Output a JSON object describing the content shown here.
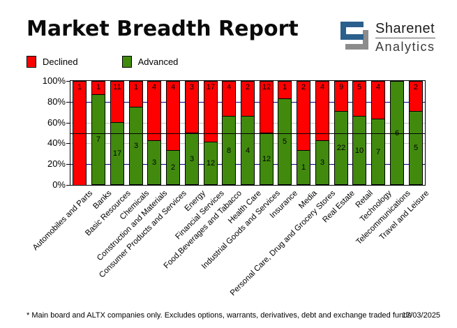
{
  "header": {
    "title": "Market Breadth Report",
    "logo": {
      "brand_top": "Sharenet",
      "brand_bottom": "Analytics",
      "blue": "#2B5F8C",
      "gray": "#8C8C8C"
    }
  },
  "legend": {
    "items": [
      {
        "label": "Declined",
        "color": "#FF0000"
      },
      {
        "label": "Advanced",
        "color": "#418A0E"
      }
    ]
  },
  "chart_data": {
    "type": "bar",
    "stacked": true,
    "stacking": "percent",
    "title": "Market Breadth Report",
    "legend_position": "top-left",
    "categories": [
      "Automobiles and Parts",
      "Banks",
      "Basic Resources",
      "Chemicals",
      "Construction and Materials",
      "Consumer Products and Services",
      "Energy",
      "Financial Services",
      "Food,Beverages and Tabacco",
      "Health Care",
      "Industrial Goods and Services",
      "Insurance",
      "Media",
      "Personal Care, Drug and Grocery Stores",
      "Real Estate",
      "Retail",
      "Technology",
      "Telecommunications",
      "Travel and Leisure"
    ],
    "series": [
      {
        "name": "Declined",
        "color": "#FF0000",
        "values": [
          1,
          1,
          11,
          1,
          4,
          4,
          3,
          17,
          4,
          2,
          12,
          1,
          2,
          4,
          9,
          5,
          4,
          0,
          2
        ]
      },
      {
        "name": "Advanced",
        "color": "#418A0E",
        "values": [
          0,
          7,
          17,
          3,
          3,
          2,
          3,
          12,
          8,
          4,
          12,
          5,
          1,
          3,
          22,
          10,
          7,
          6,
          5
        ]
      }
    ],
    "y_axis": {
      "tick_labels": [
        "0%",
        "20%",
        "40%",
        "60%",
        "80%",
        "100%"
      ],
      "range": [
        0,
        100
      ]
    },
    "gridlines": [
      {
        "pct": 20,
        "color": "#000080",
        "over_bars": false
      },
      {
        "pct": 40,
        "color": "#C0C0C0",
        "over_bars": false
      },
      {
        "pct": 50,
        "color": "#000000",
        "over_bars": true
      },
      {
        "pct": 60,
        "color": "#C0C0C0",
        "over_bars": false
      },
      {
        "pct": 80,
        "color": "#000080",
        "over_bars": false
      }
    ]
  },
  "footer": {
    "note": "* Main board and ALTX companies only. Excludes options, warrants, derivatives, debt and exchange traded funds",
    "date": "17/03/2025"
  }
}
